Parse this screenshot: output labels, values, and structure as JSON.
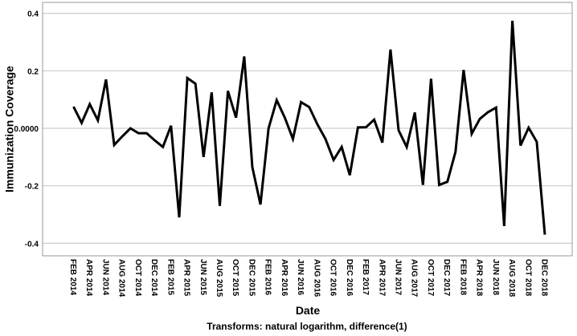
{
  "chart_data": {
    "type": "line",
    "title": "",
    "xlabel": "Date",
    "ylabel": "Immunization Coverage",
    "footnote": "Transforms: natural logarithm, difference(1)",
    "ylim": [
      -0.44,
      0.445
    ],
    "yticks": [
      0.4,
      0.2,
      0.0,
      -0.2,
      -0.4
    ],
    "ytick_labels": [
      "0.4",
      "0.2",
      "0.0000",
      "-0.2",
      "-0.4"
    ],
    "grid": true,
    "line_color": "#000000",
    "grid_color": "#cccccc",
    "x_tick_labels": [
      "FEB 2014",
      "APR 2014",
      "JUN 2014",
      "AUG 2014",
      "OCT 2014",
      "DEC 2014",
      "FEB 2015",
      "APR 2015",
      "JUN 2015",
      "AUG 2015",
      "OCT 2015",
      "DEC 2015",
      "FEB 2016",
      "APR 2016",
      "JUN 2016",
      "AUG 2016",
      "OCT 2016",
      "DEC 2016",
      "FEB 2017",
      "APR 2017",
      "JUN 2017",
      "AUG 2017",
      "OCT 2017",
      "DEC 2017",
      "FEB 2018",
      "APR 2018",
      "JUN 2018",
      "AUG 2018",
      "OCT 2018",
      "DEC 2018"
    ],
    "x_start": "FEB 2014",
    "x_end": "DEC 2018",
    "x_interval": "monthly",
    "values": [
      0.075,
      0.019,
      0.084,
      0.028,
      0.17,
      -0.058,
      -0.028,
      0.0,
      -0.017,
      -0.017,
      -0.042,
      -0.065,
      0.009,
      -0.31,
      0.175,
      0.155,
      -0.1,
      0.125,
      -0.27,
      0.13,
      0.037,
      0.25,
      -0.135,
      -0.265,
      0.0,
      0.098,
      0.037,
      -0.037,
      0.091,
      0.074,
      0.014,
      -0.037,
      -0.11,
      -0.065,
      -0.163,
      0.003,
      0.004,
      0.03,
      -0.05,
      0.274,
      -0.007,
      -0.065,
      0.055,
      -0.197,
      0.172,
      -0.197,
      -0.186,
      -0.082,
      0.203,
      -0.019,
      0.033,
      0.056,
      0.072,
      -0.34,
      0.374,
      -0.06,
      0.002,
      -0.047,
      -0.37
    ]
  }
}
